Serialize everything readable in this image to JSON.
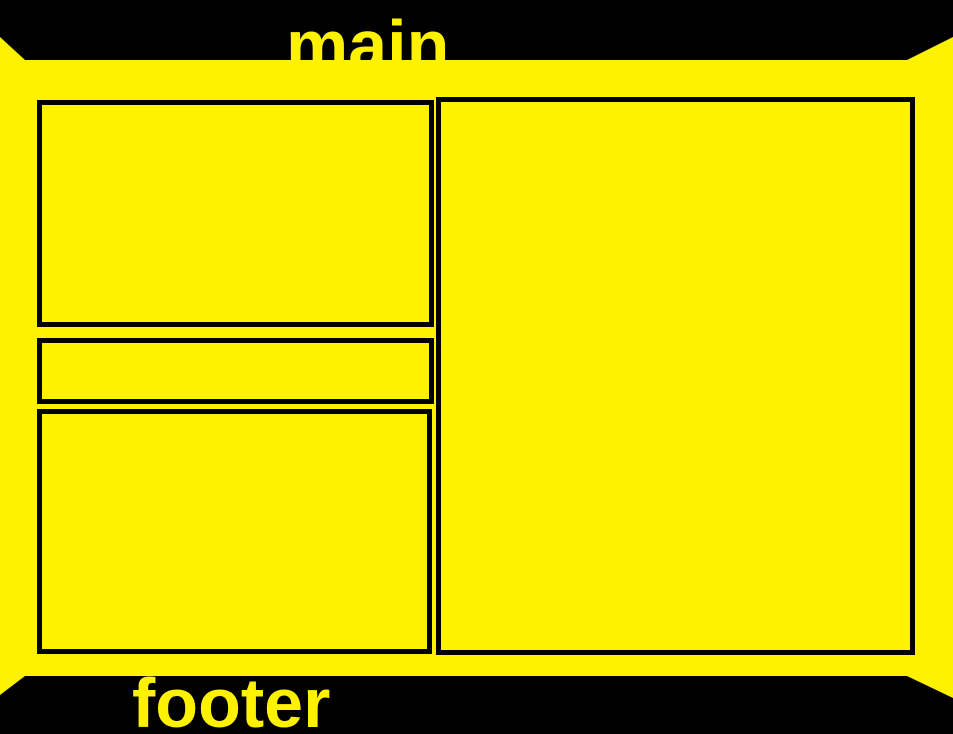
{
  "labels": {
    "main": "main",
    "footer": "footer"
  },
  "colors": {
    "background": "#000000",
    "fill": "#fff200",
    "border": "#000000",
    "text": "#fff200"
  }
}
